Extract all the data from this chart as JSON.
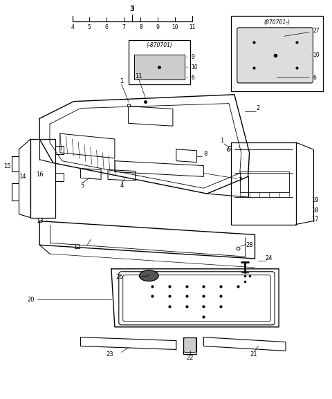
{
  "bg_color": "#ffffff",
  "fig_width": 4.8,
  "fig_height": 5.77,
  "dpi": 100
}
